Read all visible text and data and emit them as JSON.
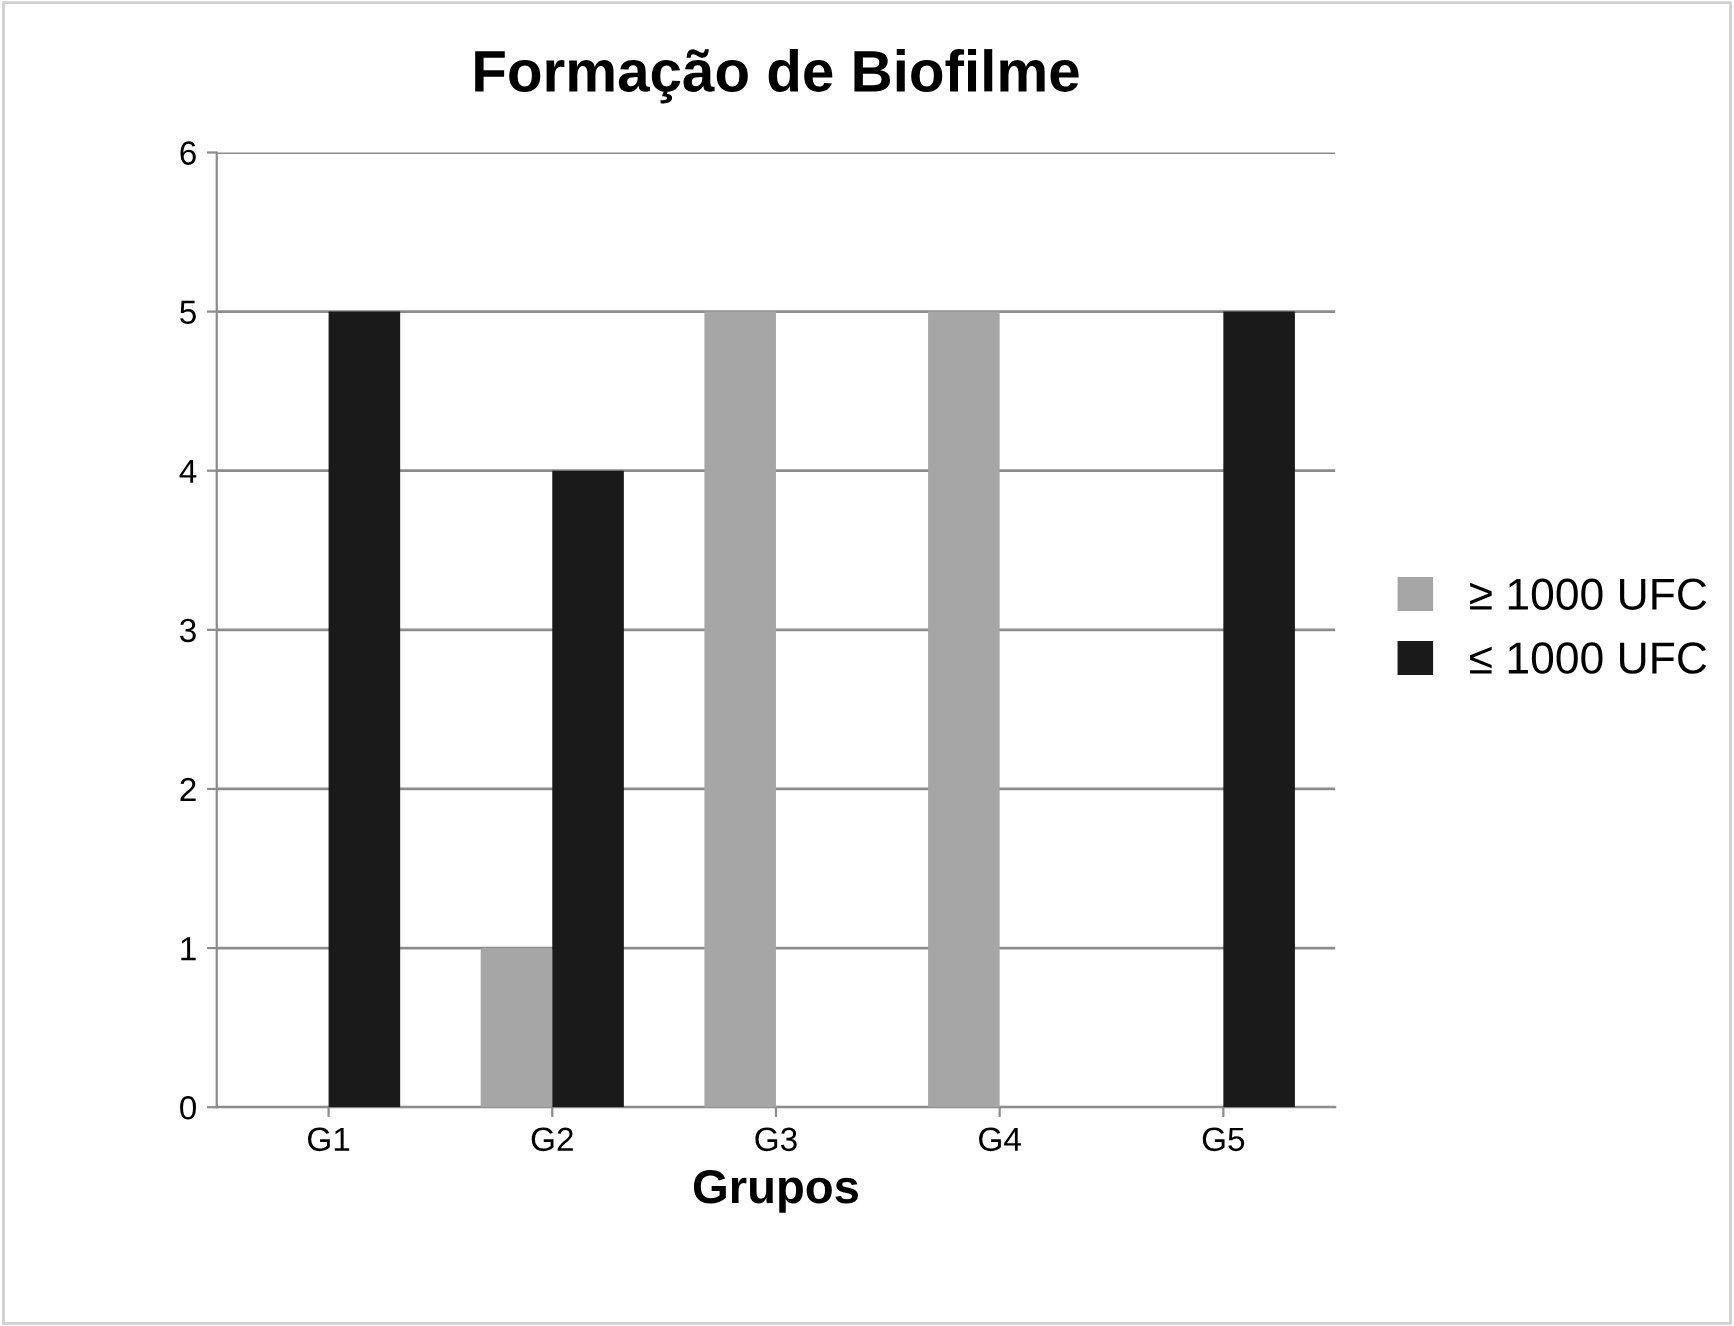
{
  "chart_data": {
    "type": "bar",
    "title": "Formação de Biofilme",
    "xlabel": "Grupos",
    "categories": [
      "G1",
      "G2",
      "G3",
      "G4",
      "G5"
    ],
    "series": [
      {
        "name": "≥ 1000 UFC",
        "color": "#a6a6a6",
        "values": [
          0,
          1,
          5,
          5,
          0
        ]
      },
      {
        "name": "≤ 1000 UFC",
        "color": "#1a1a1a",
        "values": [
          5,
          4,
          0,
          0,
          5
        ]
      }
    ],
    "ylim": [
      0,
      6
    ],
    "yticks": [
      0,
      1,
      2,
      3,
      4,
      5,
      6
    ],
    "grid": "y",
    "legend": "right"
  }
}
